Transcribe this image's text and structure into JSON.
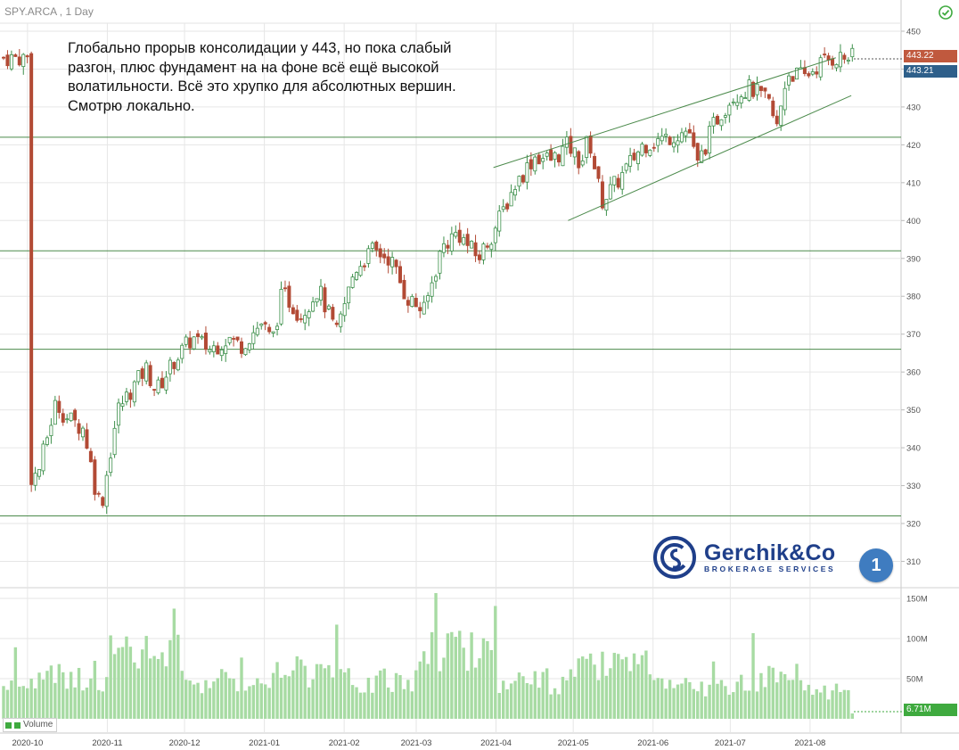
{
  "symbol": "SPY.ARCA , 1 Day",
  "note": "Глобально прорыв консолидации у 443, но пока слабый разгон, плюс фундамент на на фоне всё ещё высокой волатильности. Всё это хрупко для абсолютных вершин. Смотрю локально.",
  "price_labels": {
    "last": "443.22",
    "prev": "443.21"
  },
  "volume": {
    "legend": "Volume",
    "last_label": "6.71M"
  },
  "logo": {
    "name": "Gerchik&Co",
    "sub": "BROKERAGE SERVICES"
  },
  "page_badge": "1",
  "colors": {
    "up": "#3c8f4a",
    "down": "#b24a35",
    "volume": "#a7dba3",
    "grid": "#e6e6e6",
    "hline": "#4b8a4b"
  },
  "chart_data": {
    "type": "candlestick",
    "y_ticks": [
      "450",
      "440",
      "430",
      "420",
      "410",
      "400",
      "390",
      "380",
      "370",
      "360",
      "350",
      "340",
      "330",
      "320",
      "310"
    ],
    "y_range": [
      305,
      453
    ],
    "volume_ticks": [
      "150M",
      "100M",
      "50M"
    ],
    "volume_range": [
      0,
      160
    ],
    "x_ticks": [
      "2020-10",
      "2020-11",
      "2020-12",
      "2021-01",
      "2021-02",
      "2021-03",
      "2021-04",
      "2021-05",
      "2021-06",
      "2021-07",
      "2021-08"
    ],
    "horizontal_levels": [
      422,
      392,
      366,
      322
    ],
    "trendlines": [
      {
        "from": [
          "2021-03-31",
          414
        ],
        "to": [
          "2021-08-11",
          443
        ]
      },
      {
        "from": [
          "2021-04-29",
          400
        ],
        "to": [
          "2021-08-17",
          433
        ]
      }
    ],
    "close_series": [
      {
        "d": "2020-10-01",
        "c": 332
      },
      {
        "d": "2020-10-05",
        "c": 333
      },
      {
        "d": "2020-10-12",
        "c": 352
      },
      {
        "d": "2020-10-16",
        "c": 348
      },
      {
        "d": "2020-10-23",
        "c": 345
      },
      {
        "d": "2020-10-28",
        "c": 327
      },
      {
        "d": "2020-10-30",
        "c": 326
      },
      {
        "d": "2020-11-05",
        "c": 350
      },
      {
        "d": "2020-11-09",
        "c": 354
      },
      {
        "d": "2020-11-16",
        "c": 361
      },
      {
        "d": "2020-11-20",
        "c": 355
      },
      {
        "d": "2020-11-27",
        "c": 363
      },
      {
        "d": "2020-12-04",
        "c": 369
      },
      {
        "d": "2020-12-11",
        "c": 366
      },
      {
        "d": "2020-12-18",
        "c": 369
      },
      {
        "d": "2020-12-23",
        "c": 367
      },
      {
        "d": "2020-12-31",
        "c": 373
      },
      {
        "d": "2021-01-04",
        "c": 368
      },
      {
        "d": "2021-01-08",
        "c": 381
      },
      {
        "d": "2021-01-15",
        "c": 375
      },
      {
        "d": "2021-01-22",
        "c": 382
      },
      {
        "d": "2021-01-29",
        "c": 370
      },
      {
        "d": "2021-02-05",
        "c": 387
      },
      {
        "d": "2021-02-12",
        "c": 392
      },
      {
        "d": "2021-02-19",
        "c": 390
      },
      {
        "d": "2021-02-25",
        "c": 380
      },
      {
        "d": "2021-03-04",
        "c": 376
      },
      {
        "d": "2021-03-11",
        "c": 393
      },
      {
        "d": "2021-03-17",
        "c": 397
      },
      {
        "d": "2021-03-25",
        "c": 390
      },
      {
        "d": "2021-03-31",
        "c": 397
      },
      {
        "d": "2021-04-08",
        "c": 409
      },
      {
        "d": "2021-04-16",
        "c": 417
      },
      {
        "d": "2021-04-23",
        "c": 416
      },
      {
        "d": "2021-04-29",
        "c": 420
      },
      {
        "d": "2021-05-04",
        "c": 415
      },
      {
        "d": "2021-05-07",
        "c": 422
      },
      {
        "d": "2021-05-12",
        "c": 405
      },
      {
        "d": "2021-05-19",
        "c": 411
      },
      {
        "d": "2021-05-28",
        "c": 420
      },
      {
        "d": "2021-06-07",
        "c": 422
      },
      {
        "d": "2021-06-15",
        "c": 424
      },
      {
        "d": "2021-06-18",
        "c": 414
      },
      {
        "d": "2021-06-25",
        "c": 426
      },
      {
        "d": "2021-07-02",
        "c": 433
      },
      {
        "d": "2021-07-09",
        "c": 435
      },
      {
        "d": "2021-07-16",
        "c": 431
      },
      {
        "d": "2021-07-19",
        "c": 424
      },
      {
        "d": "2021-07-23",
        "c": 439
      },
      {
        "d": "2021-07-30",
        "c": 438
      },
      {
        "d": "2021-08-06",
        "c": 442
      },
      {
        "d": "2021-08-11",
        "c": 443
      }
    ],
    "volume_series_M": [
      {
        "d": "2020-10",
        "v": 60
      },
      {
        "d": "2020-11",
        "v": 95
      },
      {
        "d": "2020-12",
        "v": 55
      },
      {
        "d": "2021-01",
        "v": 70
      },
      {
        "d": "2021-02",
        "v": 55
      },
      {
        "d": "2021-03",
        "v": 105
      },
      {
        "d": "2021-04",
        "v": 55
      },
      {
        "d": "2021-05",
        "v": 75
      },
      {
        "d": "2021-06",
        "v": 45
      },
      {
        "d": "2021-07",
        "v": 60
      },
      {
        "d": "2021-08",
        "v": 40
      }
    ]
  }
}
